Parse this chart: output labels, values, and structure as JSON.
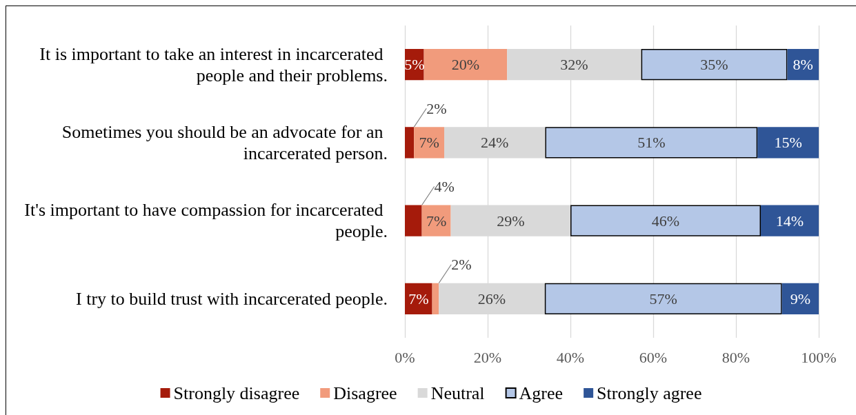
{
  "chart_data": {
    "type": "bar",
    "orientation": "horizontal",
    "stacked": true,
    "categories": [
      "It is important to take an interest in incarcerated people and their problems.",
      "Sometimes you should be an advocate for an incarcerated person.",
      "It's important to have compassion for incarcerated people.",
      "I try to build trust with incarcerated people."
    ],
    "series": [
      {
        "name": "Strongly disagree",
        "color": "#a51b0b",
        "values": [
          4.6,
          2.2,
          4.1,
          6.6
        ],
        "value_labels": [
          "5%",
          "2%",
          "4%",
          "7%"
        ]
      },
      {
        "name": "Disagree",
        "color": "#f19b7c",
        "values": [
          20.1,
          7.3,
          7.0,
          1.6
        ],
        "value_labels": [
          "20%",
          "7%",
          "7%",
          "2%"
        ]
      },
      {
        "name": "Neutral",
        "color": "#d9d9d9",
        "values": [
          32.4,
          24.4,
          28.9,
          25.6
        ],
        "value_labels": [
          "32%",
          "24%",
          "29%",
          "26%"
        ]
      },
      {
        "name": "Agree",
        "color": "#b4c7e7",
        "values": [
          35.3,
          51.3,
          46.0,
          57.3
        ],
        "value_labels": [
          "35%",
          "51%",
          "46%",
          "57%"
        ]
      },
      {
        "name": "Strongly agree",
        "color": "#2f5597",
        "values": [
          7.6,
          14.8,
          14.0,
          8.9
        ],
        "value_labels": [
          "8%",
          "15%",
          "14%",
          "9%"
        ]
      }
    ],
    "xlim": [
      0,
      100
    ],
    "xticks": [
      {
        "value": 0,
        "label": "0%"
      },
      {
        "value": 20,
        "label": "20%"
      },
      {
        "value": 40,
        "label": "40%"
      },
      {
        "value": 60,
        "label": "60%"
      },
      {
        "value": 80,
        "label": "80%"
      },
      {
        "value": 100,
        "label": "100%"
      }
    ],
    "grid": "x",
    "legend": "bottom"
  }
}
